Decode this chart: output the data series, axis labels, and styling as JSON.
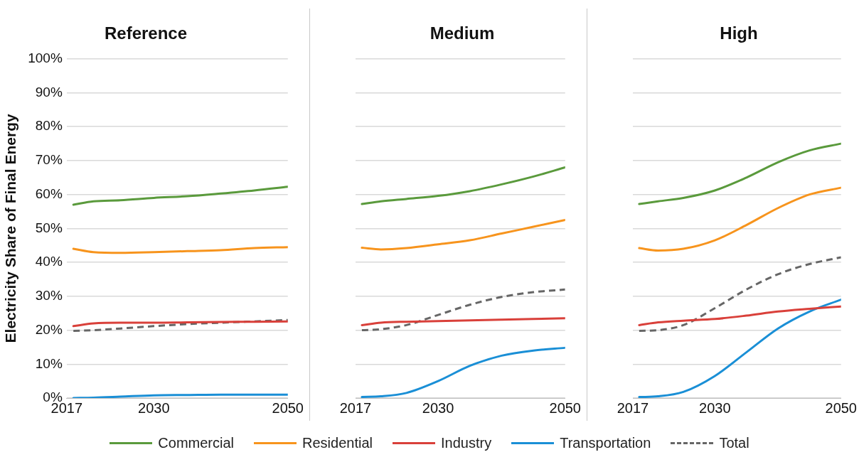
{
  "chart_data": [
    {
      "type": "line",
      "title": "Reference",
      "ylabel": "Electricity Share of Final Energy",
      "x": [
        2018,
        2021,
        2025,
        2030,
        2035,
        2040,
        2045,
        2050
      ],
      "xlim": [
        2017,
        2050
      ],
      "xticks": [
        2017,
        2030,
        2050
      ],
      "ylim": [
        0,
        100
      ],
      "yticks": [
        {
          "value": 0,
          "label": "0%"
        },
        {
          "value": 10,
          "label": "10%"
        },
        {
          "value": 20,
          "label": "20%"
        },
        {
          "value": 30,
          "label": "30%"
        },
        {
          "value": 40,
          "label": "40%"
        },
        {
          "value": 50,
          "label": "50%"
        },
        {
          "value": 60,
          "label": "60%"
        },
        {
          "value": 70,
          "label": "70%"
        },
        {
          "value": 80,
          "label": "80%"
        },
        {
          "value": 90,
          "label": "90%"
        },
        {
          "value": 100,
          "label": "100%"
        }
      ],
      "grid": "y",
      "legend": "bottom",
      "marker": "none",
      "series": [
        {
          "name": "Commercial",
          "color": "#5a9a3c",
          "values": [
            57,
            58,
            58.3,
            59,
            59.5,
            60.3,
            61.2,
            62.3
          ]
        },
        {
          "name": "Residential",
          "color": "#f7941d",
          "values": [
            44,
            43,
            42.8,
            43,
            43.3,
            43.6,
            44.2,
            44.5
          ]
        },
        {
          "name": "Industry",
          "color": "#d9403a",
          "values": [
            21.2,
            22,
            22.2,
            22.2,
            22.3,
            22.4,
            22.5,
            22.6
          ]
        },
        {
          "name": "Transportation",
          "color": "#1a8fd6",
          "values": [
            0,
            0.1,
            0.4,
            0.8,
            0.9,
            1,
            1,
            1
          ]
        },
        {
          "name": "Total",
          "color": "#666666",
          "line_style": "dashed",
          "values": [
            19.8,
            20,
            20.5,
            21.2,
            21.8,
            22.2,
            22.6,
            23
          ]
        }
      ]
    },
    {
      "type": "line",
      "title": "Medium",
      "x": [
        2018,
        2021,
        2025,
        2030,
        2035,
        2040,
        2045,
        2050
      ],
      "xlim": [
        2017,
        2050
      ],
      "xticks": [
        2017,
        2030,
        2050
      ],
      "ylim": [
        0,
        100
      ],
      "yticks": [
        {
          "value": 0,
          "label": null
        },
        {
          "value": 10,
          "label": null
        },
        {
          "value": 20,
          "label": null
        },
        {
          "value": 30,
          "label": null
        },
        {
          "value": 40,
          "label": null
        },
        {
          "value": 50,
          "label": null
        },
        {
          "value": 60,
          "label": null
        },
        {
          "value": 70,
          "label": null
        },
        {
          "value": 80,
          "label": null
        },
        {
          "value": 90,
          "label": null
        },
        {
          "value": 100,
          "label": null
        }
      ],
      "grid": "y",
      "tick_labels": "x",
      "marker": "none",
      "series": [
        {
          "color": "#5a9a3c",
          "values": [
            57.2,
            58,
            58.7,
            59.6,
            61,
            63,
            65.3,
            68
          ]
        },
        {
          "color": "#f7941d",
          "values": [
            44.3,
            43.8,
            44.2,
            45.3,
            46.5,
            48.5,
            50.5,
            52.5
          ]
        },
        {
          "color": "#d9403a",
          "values": [
            21.5,
            22.2,
            22.5,
            22.7,
            22.9,
            23.1,
            23.3,
            23.5
          ]
        },
        {
          "color": "#1a8fd6",
          "values": [
            0.3,
            0.5,
            1.5,
            5,
            9.5,
            12.5,
            14,
            14.8
          ]
        },
        {
          "color": "#666666",
          "line_style": "dashed",
          "values": [
            20,
            20.3,
            21.5,
            24.5,
            27.5,
            29.8,
            31.2,
            32
          ]
        }
      ]
    },
    {
      "type": "line",
      "title": "High",
      "x": [
        2018,
        2021,
        2025,
        2030,
        2035,
        2040,
        2045,
        2050
      ],
      "xlim": [
        2017,
        2050
      ],
      "xticks": [
        2017,
        2030,
        2050
      ],
      "ylim": [
        0,
        100
      ],
      "yticks": [
        {
          "value": 0,
          "label": null
        },
        {
          "value": 10,
          "label": null
        },
        {
          "value": 20,
          "label": null
        },
        {
          "value": 30,
          "label": null
        },
        {
          "value": 40,
          "label": null
        },
        {
          "value": 50,
          "label": null
        },
        {
          "value": 60,
          "label": null
        },
        {
          "value": 70,
          "label": null
        },
        {
          "value": 80,
          "label": null
        },
        {
          "value": 90,
          "label": null
        },
        {
          "value": 100,
          "label": null
        }
      ],
      "grid": "y",
      "tick_labels": "x",
      "marker": "none",
      "series": [
        {
          "color": "#5a9a3c",
          "values": [
            57.2,
            58,
            59,
            61.2,
            65,
            69.5,
            73,
            75
          ]
        },
        {
          "color": "#f7941d",
          "values": [
            44.2,
            43.5,
            44,
            46.5,
            51,
            56,
            60,
            62
          ]
        },
        {
          "color": "#d9403a",
          "values": [
            21.5,
            22.3,
            22.8,
            23.3,
            24.3,
            25.5,
            26.3,
            27
          ]
        },
        {
          "color": "#1a8fd6",
          "values": [
            0.3,
            0.5,
            1.8,
            6.5,
            13.5,
            20.5,
            25.5,
            29
          ]
        },
        {
          "color": "#666666",
          "line_style": "dashed",
          "values": [
            19.8,
            20,
            21.5,
            26.5,
            32,
            36.5,
            39.5,
            41.5
          ]
        }
      ]
    }
  ]
}
